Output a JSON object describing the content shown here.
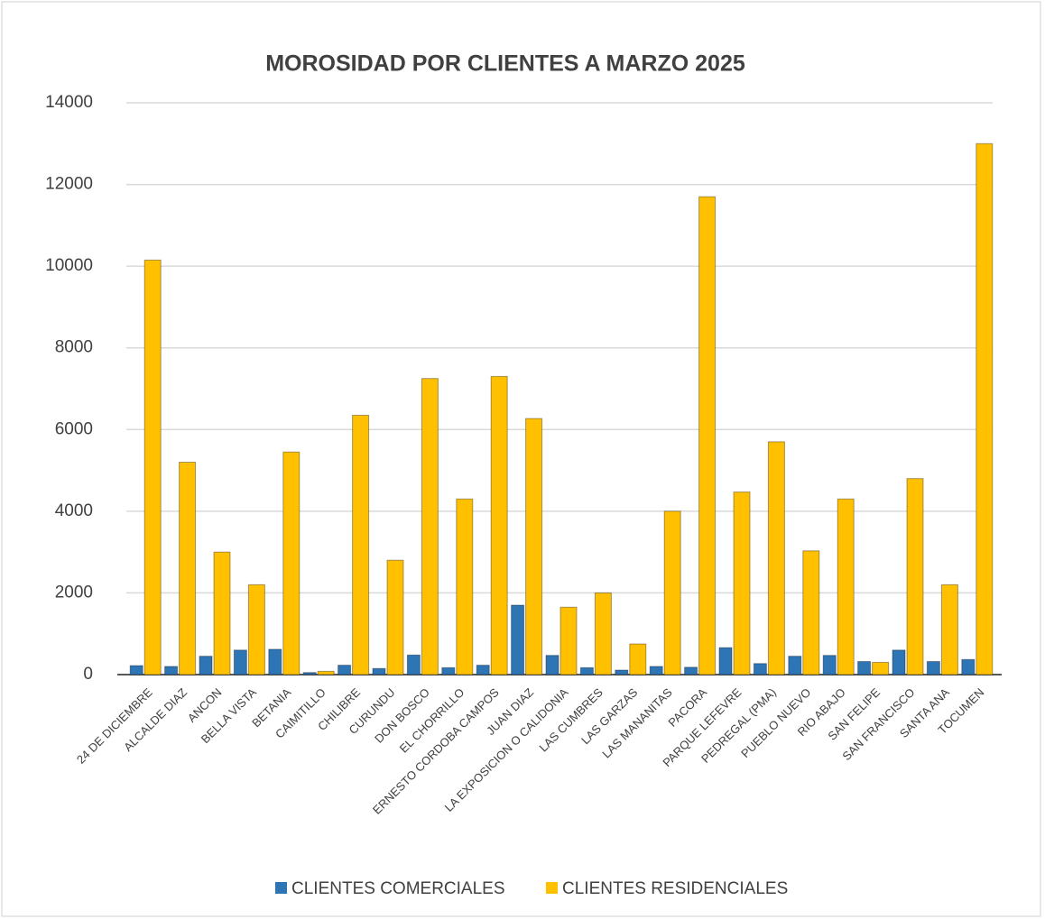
{
  "chart_data": {
    "type": "bar",
    "title": "MOROSIDAD POR CLIENTES A MARZO 2025",
    "categories": [
      "24 DE DICIEMBRE",
      "ALCALDE DIAZ",
      "ANCON",
      "BELLA VISTA",
      "BETANIA",
      "CAIMITILLO",
      "CHILIBRE",
      "CURUNDU",
      "DON BOSCO",
      "EL CHORRILLO",
      "ERNESTO CORDOBA CAMPOS",
      "JUAN DIAZ",
      "LA EXPOSICION O CALIDONIA",
      "LAS CUMBRES",
      "LAS GARZAS",
      "LAS MANANITAS",
      "PACORA",
      "PARQUE LEFEVRE",
      "PEDREGAL (PMA)",
      "PUEBLO NUEVO",
      "RIO ABAJO",
      "SAN FELIPE",
      "SAN FRANCISCO",
      "SANTA ANA",
      "TOCUMEN"
    ],
    "series": [
      {
        "name": "CLIENTES COMERCIALES",
        "color": "#2e75b6",
        "values": [
          220,
          200,
          450,
          600,
          620,
          50,
          230,
          150,
          480,
          170,
          230,
          1700,
          470,
          170,
          110,
          200,
          180,
          660,
          270,
          450,
          470,
          320,
          600,
          320,
          370
        ]
      },
      {
        "name": "CLIENTES RESIDENCIALES",
        "color": "#ffc000",
        "values": [
          10150,
          5200,
          3000,
          2200,
          5450,
          80,
          6350,
          2800,
          7250,
          4300,
          7300,
          6270,
          1650,
          2000,
          750,
          4000,
          11700,
          4470,
          5700,
          3030,
          4300,
          300,
          4800,
          2200,
          13000
        ]
      }
    ],
    "ylim": [
      0,
      14000
    ],
    "yticks": [
      0,
      2000,
      4000,
      6000,
      8000,
      10000,
      12000,
      14000
    ],
    "grid": true,
    "legend": "bottom"
  }
}
